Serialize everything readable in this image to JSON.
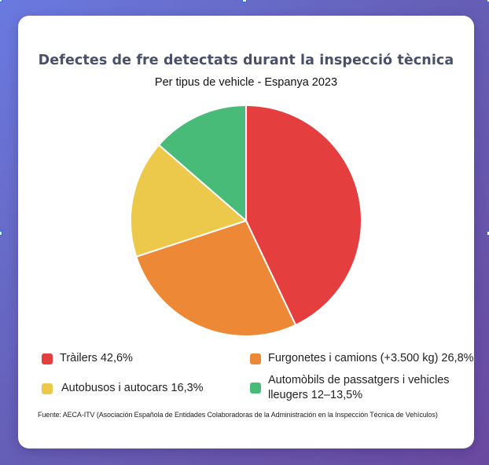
{
  "chart": {
    "title": "Defectes de fre detectats durant la inspecció tècnica",
    "subtitle": "Per tipus de vehicle - Espanya 2023",
    "source": "Fuente: AECA-ITV (Asociación Española de Entidades Colaboradoras de la Administración en la Inspección Técnica de Vehículos)",
    "legend": [
      {
        "label": "Tràilers 42,6%",
        "color": "#e53e3e"
      },
      {
        "label": "Furgonetes i camions (+3.500 kg) 26,8%",
        "color": "#ed8936"
      },
      {
        "label": "Autobusos i autocars 16,3%",
        "color": "#ecc94b"
      },
      {
        "label": "Automòbils de passatgers i vehicles lleugers 12–13,5%",
        "color": "#48bb78"
      }
    ]
  },
  "chart_data": {
    "type": "pie",
    "title": "Defectes de fre detectats durant la inspecció tècnica",
    "subtitle": "Per tipus de vehicle - Espanya 2023",
    "categories": [
      "Tràilers",
      "Furgonetes i camions (+3.500 kg)",
      "Autobusos i autocars",
      "Automòbils de passatgers i vehicles lleugers"
    ],
    "values": [
      42.6,
      26.8,
      16.3,
      13.5
    ],
    "value_labels": [
      "42,6%",
      "26,8%",
      "16,3%",
      "12–13,5%"
    ],
    "colors": [
      "#e53e3e",
      "#ed8936",
      "#ecc94b",
      "#48bb78"
    ],
    "start_angle": "12 o'clock, clockwise",
    "legend_position": "bottom",
    "source": "Fuente: AECA-ITV (Asociación Española de Entidades Colaboradoras de la Administración en la Inspección Técnica de Vehículos)"
  }
}
